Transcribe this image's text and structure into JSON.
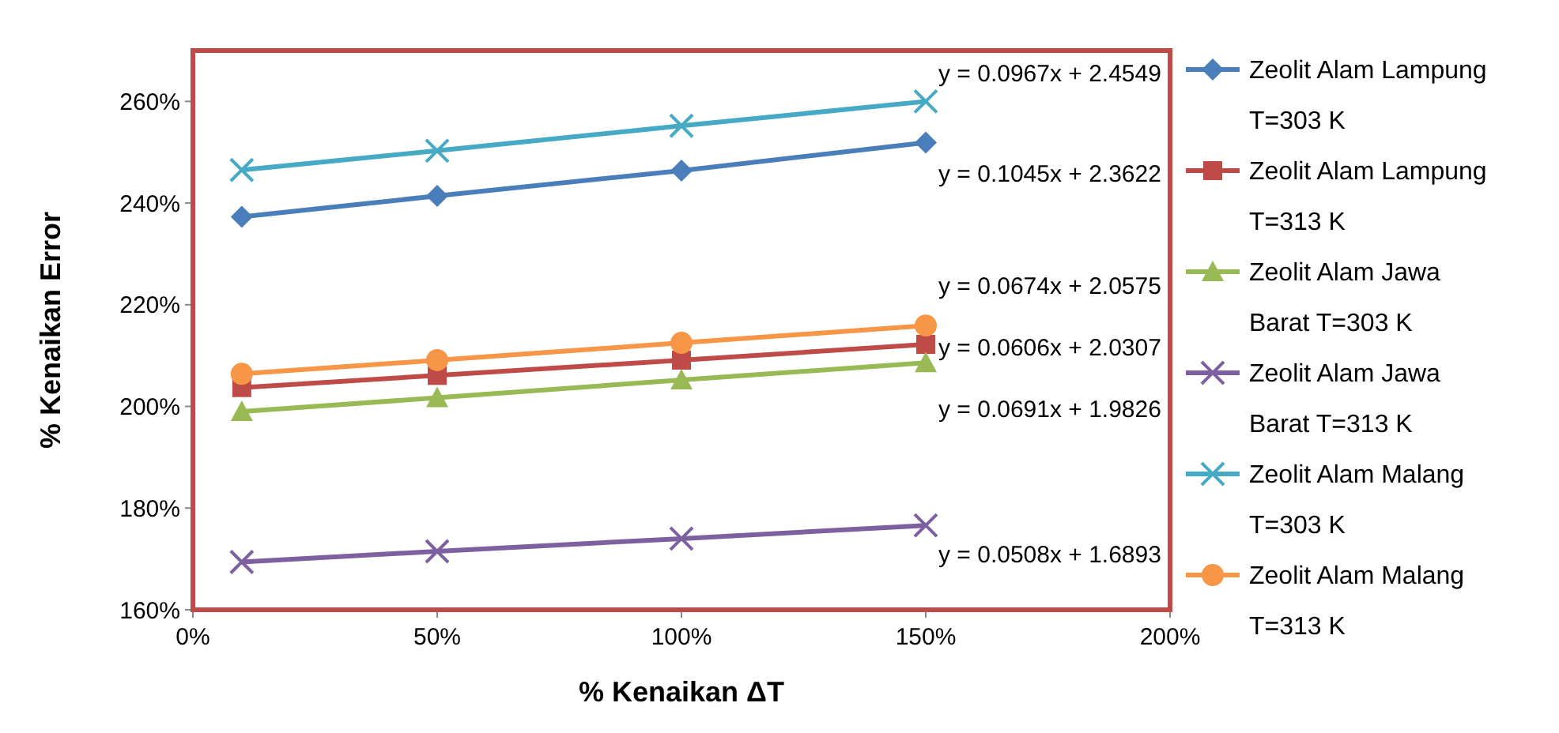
{
  "chart_data": {
    "type": "line",
    "xlabel": "% Kenaikan ΔT",
    "ylabel": "% Kenaikan Error",
    "x": [
      10,
      50,
      100,
      150
    ],
    "xlim": [
      0,
      200
    ],
    "xticks": [
      {
        "value": 0,
        "label": "0%"
      },
      {
        "value": 50,
        "label": "50%"
      },
      {
        "value": 100,
        "label": "100%"
      },
      {
        "value": 150,
        "label": "150%"
      },
      {
        "value": 200,
        "label": "200%"
      }
    ],
    "ylim": [
      160,
      270
    ],
    "yticks": [
      {
        "value": 160,
        "label": "160%"
      },
      {
        "value": 180,
        "label": "180%"
      },
      {
        "value": 200,
        "label": "200%"
      },
      {
        "value": 220,
        "label": "220%"
      },
      {
        "value": 240,
        "label": "240%"
      },
      {
        "value": 260,
        "label": "260%"
      }
    ],
    "legend": "right",
    "line_style": "solid",
    "series": [
      {
        "name": "Zeolit Alam Lampung T=303 K",
        "color": "#4a7ebb",
        "marker": "diamond",
        "values": [
          237.3,
          241.4,
          246.4,
          251.9
        ]
      },
      {
        "name": "Zeolit Alam Lampung T=313 K",
        "color": "#be4b48",
        "marker": "square",
        "values": [
          203.7,
          206.1,
          209.1,
          212.2
        ]
      },
      {
        "name": "Zeolit Alam Jawa Barat T=303 K",
        "color": "#98b954",
        "marker": "triangle",
        "values": [
          199.0,
          201.7,
          205.2,
          208.6
        ]
      },
      {
        "name": "Zeolit Alam Jawa Barat T=313 K",
        "color": "#7d60a0",
        "marker": "cross",
        "values": [
          169.4,
          171.5,
          174.0,
          176.6
        ]
      },
      {
        "name": "Zeolit Alam Malang T=303 K",
        "color": "#46aac5",
        "marker": "cross",
        "values": [
          246.5,
          250.3,
          255.2,
          260.0
        ]
      },
      {
        "name": "Zeolit Alam Malang T=313 K",
        "color": "#f79646",
        "marker": "circle",
        "values": [
          206.4,
          209.1,
          212.5,
          215.9
        ]
      }
    ],
    "annotations": [
      "y = 0.0967x + 2.4549",
      "y = 0.1045x + 2.3622",
      "y = 0.0674x + 2.0575",
      "y = 0.0606x + 2.0307",
      "y = 0.0691x + 1.9826",
      "y = 0.0508x + 1.6893"
    ]
  }
}
